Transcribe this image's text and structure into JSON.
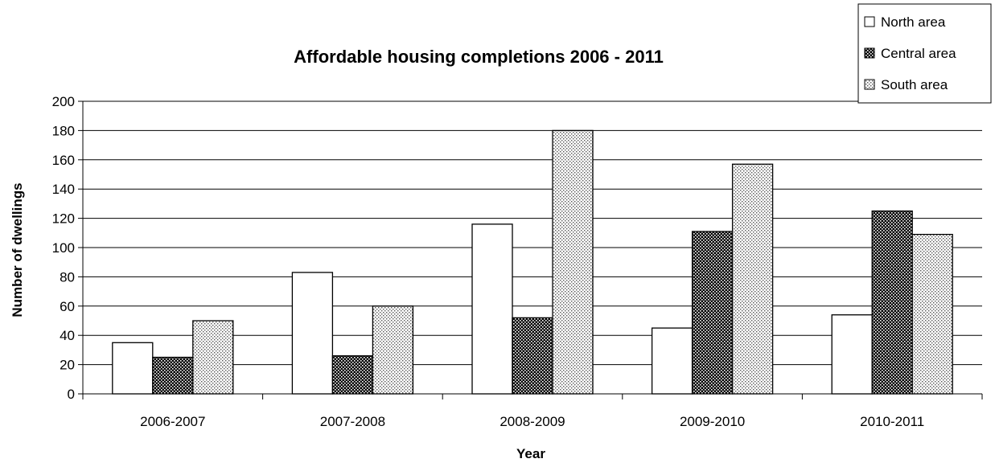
{
  "chart_data": {
    "type": "bar",
    "title": "Affordable housing completions 2006 - 2011",
    "xlabel": "Year",
    "ylabel": "Number of dwellings",
    "categories": [
      "2006-2007",
      "2007-2008",
      "2008-2009",
      "2009-2010",
      "2010-2011"
    ],
    "ylim": [
      0,
      200
    ],
    "yticks": [
      0,
      20,
      40,
      60,
      80,
      100,
      120,
      140,
      160,
      180,
      200
    ],
    "grid": true,
    "legend_position": "top-right",
    "series": [
      {
        "name": "North area",
        "values": [
          35,
          83,
          116,
          45,
          54
        ],
        "fill": "white",
        "color": "#ffffff"
      },
      {
        "name": "Central area",
        "values": [
          25,
          26,
          52,
          111,
          125
        ],
        "fill": "dense-dots",
        "color": "#1a1a1a"
      },
      {
        "name": "South area",
        "values": [
          50,
          60,
          180,
          157,
          109
        ],
        "fill": "light-dots",
        "color": "#c8c8c8"
      }
    ]
  }
}
